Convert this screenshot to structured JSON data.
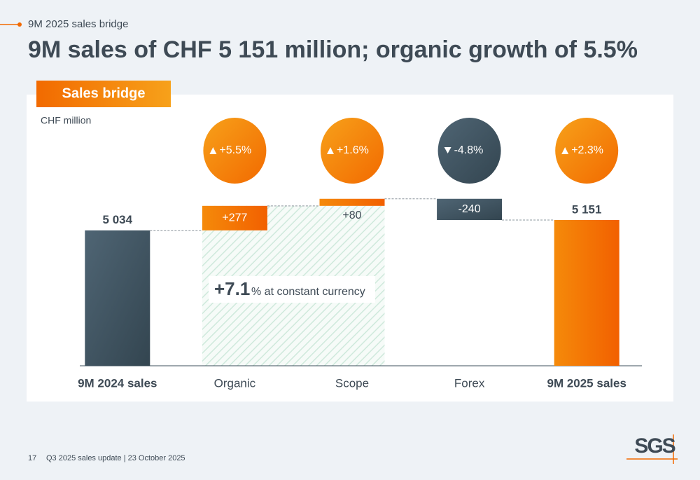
{
  "header": {
    "section": "9M 2025 sales bridge",
    "title": "9M sales of CHF 5 151 million; organic growth of 5.5%"
  },
  "chart_data": {
    "type": "waterfall",
    "title": "Sales bridge",
    "unit_label": "CHF million",
    "categories": [
      "9M 2024 sales",
      "Organic",
      "Scope",
      "Forex",
      "9M 2025 sales"
    ],
    "values": [
      5034,
      277,
      80,
      -240,
      5151
    ],
    "value_labels": [
      "5 034",
      "+277",
      "+80",
      "-240",
      "5 151"
    ],
    "totals": [
      true,
      false,
      false,
      false,
      true
    ],
    "growth": [
      null,
      5.5,
      1.6,
      -4.8,
      2.3
    ],
    "growth_labels": [
      null,
      "+5.5%",
      "+1.6%",
      "-4.8%",
      "+2.3%"
    ],
    "colors": {
      "positive": "#f26a00",
      "negative": "#3e505d",
      "start": "#3e505d",
      "end": "#f26a00"
    },
    "ylim": [
      3500,
      5500
    ],
    "callout": {
      "value": 7.1,
      "label": "+7.1",
      "text": "% at constant currency"
    }
  },
  "footer": {
    "page": "17",
    "text": "Q3 2025 sales update | 23 October 2025",
    "logo": "SGS"
  }
}
